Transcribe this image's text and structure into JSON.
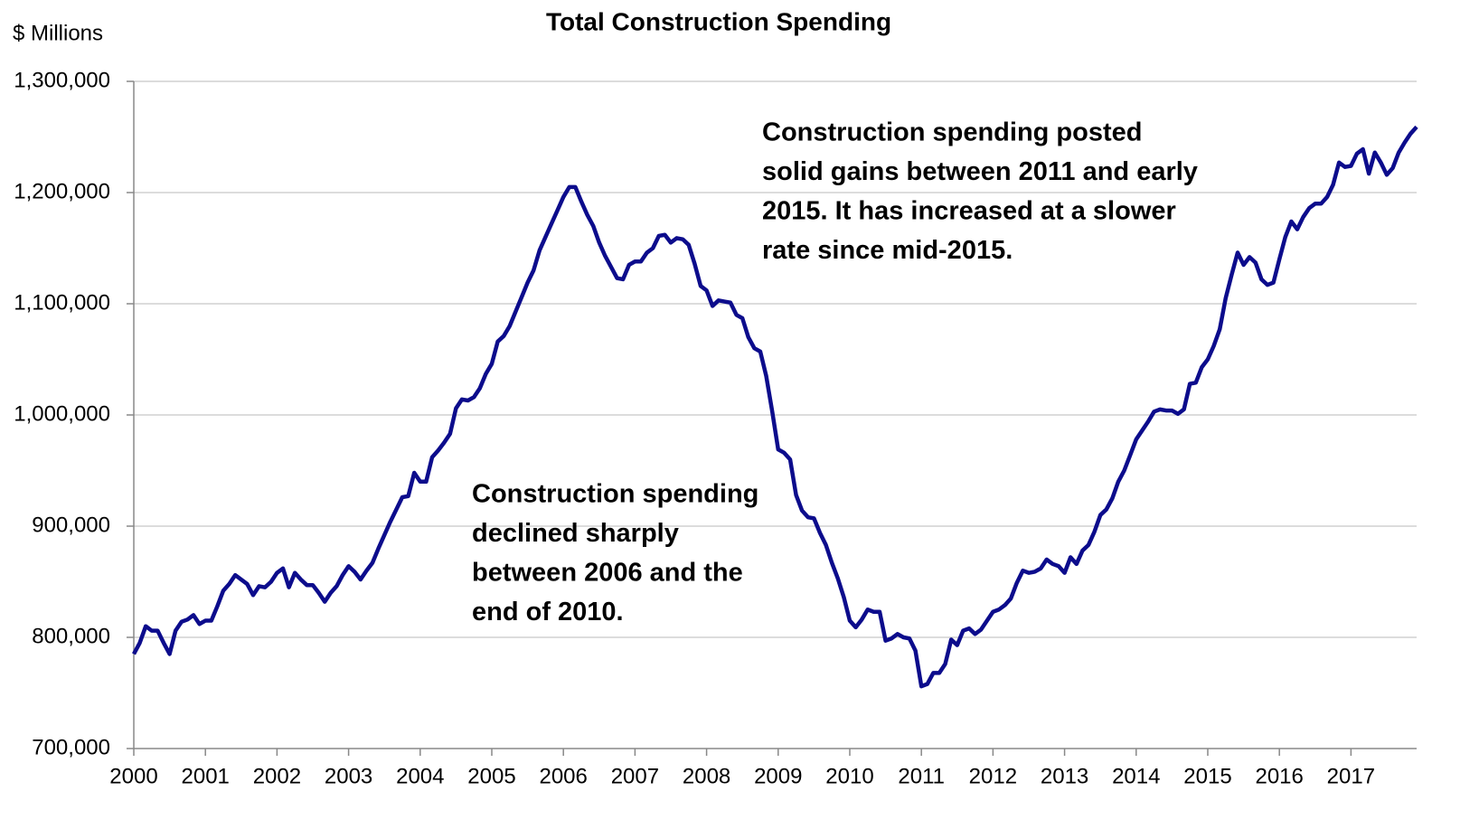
{
  "chart_data": {
    "type": "line",
    "title": "Total Construction Spending",
    "y_label": "$ Millions",
    "annotations": [
      {
        "lines": [
          "Construction spending posted",
          "solid gains between 2011 and early",
          "2015. It has increased at a slower",
          "rate since mid-2015."
        ]
      },
      {
        "lines": [
          "Construction spending",
          "declined sharply",
          "between 2006 and the",
          "end of 2010."
        ]
      }
    ],
    "grid": true,
    "xlim": [
      2000,
      2017.917
    ],
    "xticks": [
      2000,
      2001,
      2002,
      2003,
      2004,
      2005,
      2006,
      2007,
      2008,
      2009,
      2010,
      2011,
      2012,
      2013,
      2014,
      2015,
      2016,
      2017
    ],
    "ylim": [
      700000,
      1300000
    ],
    "yticks": [
      {
        "value": 700000,
        "label": "700,000"
      },
      {
        "value": 800000,
        "label": "800,000"
      },
      {
        "value": 900000,
        "label": "900,000"
      },
      {
        "value": 1000000,
        "label": "1,000,000"
      },
      {
        "value": 1100000,
        "label": "1,100,000"
      },
      {
        "value": 1200000,
        "label": "1,200,000"
      },
      {
        "value": 1300000,
        "label": "1,300,000"
      }
    ],
    "x": [
      2000,
      2000.083,
      2000.167,
      2000.25,
      2000.333,
      2000.417,
      2000.5,
      2000.583,
      2000.667,
      2000.75,
      2000.833,
      2000.917,
      2001,
      2001.083,
      2001.167,
      2001.25,
      2001.333,
      2001.417,
      2001.5,
      2001.583,
      2001.667,
      2001.75,
      2001.833,
      2001.917,
      2002,
      2002.083,
      2002.167,
      2002.25,
      2002.333,
      2002.417,
      2002.5,
      2002.583,
      2002.667,
      2002.75,
      2002.833,
      2002.917,
      2003,
      2003.083,
      2003.167,
      2003.25,
      2003.333,
      2003.417,
      2003.5,
      2003.583,
      2003.667,
      2003.75,
      2003.833,
      2003.917,
      2004,
      2004.083,
      2004.167,
      2004.25,
      2004.333,
      2004.417,
      2004.5,
      2004.583,
      2004.667,
      2004.75,
      2004.833,
      2004.917,
      2005,
      2005.083,
      2005.167,
      2005.25,
      2005.333,
      2005.417,
      2005.5,
      2005.583,
      2005.667,
      2005.75,
      2005.833,
      2005.917,
      2006,
      2006.083,
      2006.167,
      2006.25,
      2006.333,
      2006.417,
      2006.5,
      2006.583,
      2006.667,
      2006.75,
      2006.833,
      2006.917,
      2007,
      2007.083,
      2007.167,
      2007.25,
      2007.333,
      2007.417,
      2007.5,
      2007.583,
      2007.667,
      2007.75,
      2007.833,
      2007.917,
      2008,
      2008.083,
      2008.167,
      2008.25,
      2008.333,
      2008.417,
      2008.5,
      2008.583,
      2008.667,
      2008.75,
      2008.833,
      2008.917,
      2009,
      2009.083,
      2009.167,
      2009.25,
      2009.333,
      2009.417,
      2009.5,
      2009.583,
      2009.667,
      2009.75,
      2009.833,
      2009.917,
      2010,
      2010.083,
      2010.167,
      2010.25,
      2010.333,
      2010.417,
      2010.5,
      2010.583,
      2010.667,
      2010.75,
      2010.833,
      2010.917,
      2011,
      2011.083,
      2011.167,
      2011.25,
      2011.333,
      2011.417,
      2011.5,
      2011.583,
      2011.667,
      2011.75,
      2011.833,
      2011.917,
      2012,
      2012.083,
      2012.167,
      2012.25,
      2012.333,
      2012.417,
      2012.5,
      2012.583,
      2012.667,
      2012.75,
      2012.833,
      2012.917,
      2013,
      2013.083,
      2013.167,
      2013.25,
      2013.333,
      2013.417,
      2013.5,
      2013.583,
      2013.667,
      2013.75,
      2013.833,
      2013.917,
      2014,
      2014.083,
      2014.167,
      2014.25,
      2014.333,
      2014.417,
      2014.5,
      2014.583,
      2014.667,
      2014.75,
      2014.833,
      2014.917,
      2015,
      2015.083,
      2015.167,
      2015.25,
      2015.333,
      2015.417,
      2015.5,
      2015.583,
      2015.667,
      2015.75,
      2015.833,
      2015.917,
      2016,
      2016.083,
      2016.167,
      2016.25,
      2016.333,
      2016.417,
      2016.5,
      2016.583,
      2016.667,
      2016.75,
      2016.833,
      2016.917,
      2017,
      2017.083,
      2017.167,
      2017.25,
      2017.333,
      2017.417,
      2017.5,
      2017.583,
      2017.667,
      2017.75,
      2017.833,
      2017.917
    ],
    "series": [
      {
        "color": "#0c0c8c",
        "values": [
          785000,
          795000,
          810000,
          806000,
          806000,
          795000,
          785000,
          806000,
          814000,
          816000,
          820000,
          812000,
          815000,
          815000,
          828000,
          842000,
          848000,
          856000,
          852000,
          848000,
          838000,
          846000,
          845000,
          850000,
          858000,
          862000,
          845000,
          858000,
          852000,
          847000,
          847000,
          840000,
          832000,
          840000,
          846000,
          856000,
          864000,
          859000,
          852000,
          860000,
          867000,
          880000,
          892000,
          904000,
          915000,
          926000,
          927000,
          948000,
          940000,
          940000,
          962000,
          968000,
          975000,
          983000,
          1006000,
          1014000,
          1013000,
          1016000,
          1024000,
          1037000,
          1046000,
          1066000,
          1071000,
          1080000,
          1093000,
          1106000,
          1119000,
          1130000,
          1148000,
          1160000,
          1172000,
          1184000,
          1196000,
          1205000,
          1205000,
          1192000,
          1180000,
          1170000,
          1155000,
          1143000,
          1133000,
          1123000,
          1122000,
          1135000,
          1138000,
          1138000,
          1146000,
          1150000,
          1161000,
          1162000,
          1155000,
          1159000,
          1158000,
          1153000,
          1136000,
          1116000,
          1112000,
          1098000,
          1103000,
          1102000,
          1101000,
          1090000,
          1087000,
          1070000,
          1060000,
          1057000,
          1035000,
          1003000,
          969000,
          966000,
          960000,
          928000,
          914000,
          908000,
          907000,
          894000,
          883000,
          867000,
          853000,
          836000,
          815000,
          809000,
          816000,
          825000,
          823000,
          823000,
          797000,
          799000,
          803000,
          800000,
          799000,
          788000,
          756000,
          758000,
          768000,
          768000,
          776000,
          798000,
          793000,
          806000,
          808000,
          803000,
          807000,
          815000,
          823000,
          825000,
          829000,
          835000,
          849000,
          860000,
          858000,
          859000,
          862000,
          870000,
          866000,
          864000,
          858000,
          872000,
          866000,
          878000,
          883000,
          895000,
          910000,
          915000,
          925000,
          940000,
          950000,
          964000,
          978000,
          986000,
          994000,
          1003000,
          1005000,
          1004000,
          1004000,
          1001000,
          1005000,
          1028000,
          1029000,
          1043000,
          1050000,
          1062000,
          1077000,
          1105000,
          1126000,
          1146000,
          1135000,
          1142000,
          1137000,
          1122000,
          1117000,
          1119000,
          1140000,
          1160000,
          1174000,
          1167000,
          1178000,
          1186000,
          1190000,
          1190000,
          1196000,
          1207000,
          1227000,
          1223000,
          1224000,
          1235000,
          1239000,
          1217000,
          1236000,
          1227000,
          1216000,
          1222000,
          1236000,
          1245000,
          1253000,
          1259000
        ]
      }
    ]
  }
}
